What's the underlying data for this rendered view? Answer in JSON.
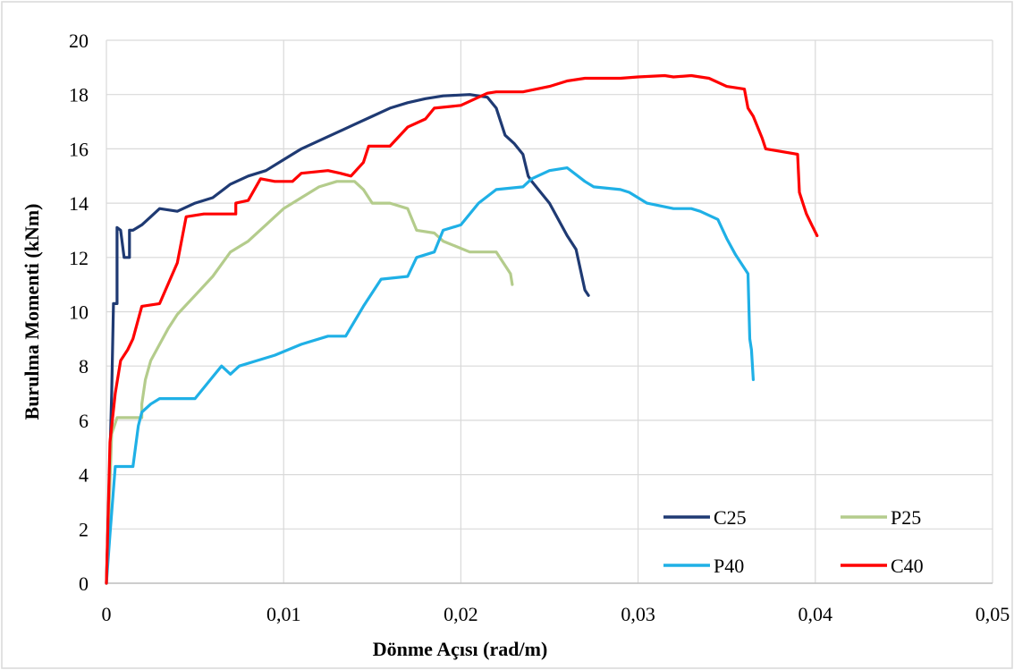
{
  "chart_data": {
    "type": "line",
    "title": "",
    "xlabel": "Dönme Açısı (rad/m)",
    "ylabel": "Burulma Momenti (kNm)",
    "xlim": [
      0,
      0.05
    ],
    "ylim": [
      0,
      20
    ],
    "x_ticks": [
      0,
      0.01,
      0.02,
      0.03,
      0.04,
      0.05
    ],
    "x_tick_labels": [
      "0",
      "0,01",
      "0,02",
      "0,03",
      "0,04",
      "0,05"
    ],
    "y_ticks": [
      0,
      2,
      4,
      6,
      8,
      10,
      12,
      14,
      16,
      18,
      20
    ],
    "y_tick_labels": [
      "0",
      "2",
      "4",
      "6",
      "8",
      "10",
      "12",
      "14",
      "16",
      "18",
      "20"
    ],
    "grid": true,
    "legend_position": "bottom-right",
    "series": [
      {
        "name": "C25",
        "color": "#1f3a73",
        "points": [
          [
            0,
            0
          ],
          [
            0.0003,
            7
          ],
          [
            0.0004,
            10.3
          ],
          [
            0.0006,
            10.3
          ],
          [
            0.0006,
            13.1
          ],
          [
            0.0008,
            13.0
          ],
          [
            0.001,
            12
          ],
          [
            0.0013,
            12
          ],
          [
            0.0013,
            13
          ],
          [
            0.0015,
            13
          ],
          [
            0.002,
            13.2
          ],
          [
            0.0025,
            13.5
          ],
          [
            0.003,
            13.8
          ],
          [
            0.004,
            13.7
          ],
          [
            0.005,
            14.0
          ],
          [
            0.006,
            14.2
          ],
          [
            0.007,
            14.7
          ],
          [
            0.008,
            15.0
          ],
          [
            0.009,
            15.2
          ],
          [
            0.01,
            15.6
          ],
          [
            0.011,
            16.0
          ],
          [
            0.012,
            16.3
          ],
          [
            0.013,
            16.6
          ],
          [
            0.014,
            16.9
          ],
          [
            0.015,
            17.2
          ],
          [
            0.016,
            17.5
          ],
          [
            0.017,
            17.7
          ],
          [
            0.018,
            17.85
          ],
          [
            0.019,
            17.95
          ],
          [
            0.0205,
            18.0
          ],
          [
            0.0215,
            17.9
          ],
          [
            0.022,
            17.5
          ],
          [
            0.0225,
            16.5
          ],
          [
            0.023,
            16.2
          ],
          [
            0.0235,
            15.8
          ],
          [
            0.0238,
            15.0
          ],
          [
            0.024,
            14.8
          ],
          [
            0.025,
            14.0
          ],
          [
            0.026,
            12.8
          ],
          [
            0.0265,
            12.3
          ],
          [
            0.027,
            10.8
          ],
          [
            0.0272,
            10.6
          ]
        ]
      },
      {
        "name": "P25",
        "color": "#b4cc8c",
        "points": [
          [
            0,
            0
          ],
          [
            0.0003,
            5.5
          ],
          [
            0.0006,
            6.1
          ],
          [
            0.002,
            6.1
          ],
          [
            0.002,
            6.6
          ],
          [
            0.0022,
            7.5
          ],
          [
            0.0025,
            8.2
          ],
          [
            0.003,
            8.8
          ],
          [
            0.0035,
            9.4
          ],
          [
            0.004,
            9.9
          ],
          [
            0.005,
            10.6
          ],
          [
            0.006,
            11.3
          ],
          [
            0.007,
            12.2
          ],
          [
            0.008,
            12.6
          ],
          [
            0.009,
            13.2
          ],
          [
            0.01,
            13.8
          ],
          [
            0.011,
            14.2
          ],
          [
            0.012,
            14.6
          ],
          [
            0.013,
            14.8
          ],
          [
            0.014,
            14.8
          ],
          [
            0.0145,
            14.5
          ],
          [
            0.015,
            14.0
          ],
          [
            0.016,
            14.0
          ],
          [
            0.017,
            13.8
          ],
          [
            0.0175,
            13.0
          ],
          [
            0.0185,
            12.9
          ],
          [
            0.019,
            12.6
          ],
          [
            0.0205,
            12.2
          ],
          [
            0.022,
            12.2
          ],
          [
            0.0228,
            11.4
          ],
          [
            0.0229,
            11.0
          ]
        ]
      },
      {
        "name": "P40",
        "color": "#1fb0e6",
        "points": [
          [
            0,
            0
          ],
          [
            0.0002,
            1.8
          ],
          [
            0.0005,
            4.3
          ],
          [
            0.0015,
            4.3
          ],
          [
            0.0018,
            5.8
          ],
          [
            0.002,
            6.3
          ],
          [
            0.0025,
            6.6
          ],
          [
            0.003,
            6.8
          ],
          [
            0.005,
            6.8
          ],
          [
            0.006,
            7.6
          ],
          [
            0.0065,
            8.0
          ],
          [
            0.007,
            7.7
          ],
          [
            0.0075,
            8.0
          ],
          [
            0.0085,
            8.2
          ],
          [
            0.0095,
            8.4
          ],
          [
            0.011,
            8.8
          ],
          [
            0.0125,
            9.1
          ],
          [
            0.0135,
            9.1
          ],
          [
            0.0145,
            10.2
          ],
          [
            0.0155,
            11.2
          ],
          [
            0.017,
            11.3
          ],
          [
            0.0175,
            12.0
          ],
          [
            0.0185,
            12.2
          ],
          [
            0.019,
            13.0
          ],
          [
            0.02,
            13.2
          ],
          [
            0.021,
            14.0
          ],
          [
            0.022,
            14.5
          ],
          [
            0.0235,
            14.6
          ],
          [
            0.024,
            14.9
          ],
          [
            0.025,
            15.2
          ],
          [
            0.026,
            15.3
          ],
          [
            0.027,
            14.8
          ],
          [
            0.0275,
            14.6
          ],
          [
            0.029,
            14.5
          ],
          [
            0.0295,
            14.4
          ],
          [
            0.0305,
            14.0
          ],
          [
            0.032,
            13.8
          ],
          [
            0.033,
            13.8
          ],
          [
            0.0335,
            13.7
          ],
          [
            0.0345,
            13.4
          ],
          [
            0.035,
            12.7
          ],
          [
            0.0355,
            12.1
          ],
          [
            0.036,
            11.6
          ],
          [
            0.0362,
            11.4
          ],
          [
            0.0363,
            9.0
          ],
          [
            0.0364,
            8.6
          ],
          [
            0.0365,
            7.5
          ]
        ]
      },
      {
        "name": "C40",
        "color": "#ff0000",
        "points": [
          [
            0,
            0
          ],
          [
            0.0002,
            5.2
          ],
          [
            0.0005,
            7.0
          ],
          [
            0.0008,
            8.2
          ],
          [
            0.0012,
            8.6
          ],
          [
            0.0015,
            9.0
          ],
          [
            0.002,
            10.2
          ],
          [
            0.003,
            10.3
          ],
          [
            0.004,
            11.8
          ],
          [
            0.0045,
            13.5
          ],
          [
            0.0055,
            13.6
          ],
          [
            0.0073,
            13.6
          ],
          [
            0.0073,
            14.0
          ],
          [
            0.008,
            14.1
          ],
          [
            0.0087,
            14.9
          ],
          [
            0.0095,
            14.8
          ],
          [
            0.0105,
            14.8
          ],
          [
            0.011,
            15.1
          ],
          [
            0.0125,
            15.2
          ],
          [
            0.0132,
            15.1
          ],
          [
            0.0138,
            15.0
          ],
          [
            0.0145,
            15.5
          ],
          [
            0.0148,
            16.1
          ],
          [
            0.016,
            16.1
          ],
          [
            0.017,
            16.8
          ],
          [
            0.018,
            17.1
          ],
          [
            0.0185,
            17.5
          ],
          [
            0.02,
            17.6
          ],
          [
            0.021,
            17.9
          ],
          [
            0.0215,
            18.05
          ],
          [
            0.022,
            18.1
          ],
          [
            0.0235,
            18.1
          ],
          [
            0.025,
            18.3
          ],
          [
            0.026,
            18.5
          ],
          [
            0.027,
            18.6
          ],
          [
            0.029,
            18.6
          ],
          [
            0.03,
            18.65
          ],
          [
            0.0315,
            18.7
          ],
          [
            0.032,
            18.65
          ],
          [
            0.033,
            18.7
          ],
          [
            0.034,
            18.6
          ],
          [
            0.035,
            18.3
          ],
          [
            0.036,
            18.2
          ],
          [
            0.0362,
            17.5
          ],
          [
            0.0365,
            17.2
          ],
          [
            0.037,
            16.4
          ],
          [
            0.0372,
            16.0
          ],
          [
            0.039,
            15.8
          ],
          [
            0.0391,
            14.4
          ],
          [
            0.0393,
            14.0
          ],
          [
            0.0395,
            13.6
          ],
          [
            0.0398,
            13.2
          ],
          [
            0.0401,
            12.8
          ]
        ]
      }
    ],
    "legend": [
      {
        "name": "C25",
        "color": "#1f3a73"
      },
      {
        "name": "P25",
        "color": "#b4cc8c"
      },
      {
        "name": "P40",
        "color": "#1fb0e6"
      },
      {
        "name": "C40",
        "color": "#ff0000"
      }
    ]
  }
}
